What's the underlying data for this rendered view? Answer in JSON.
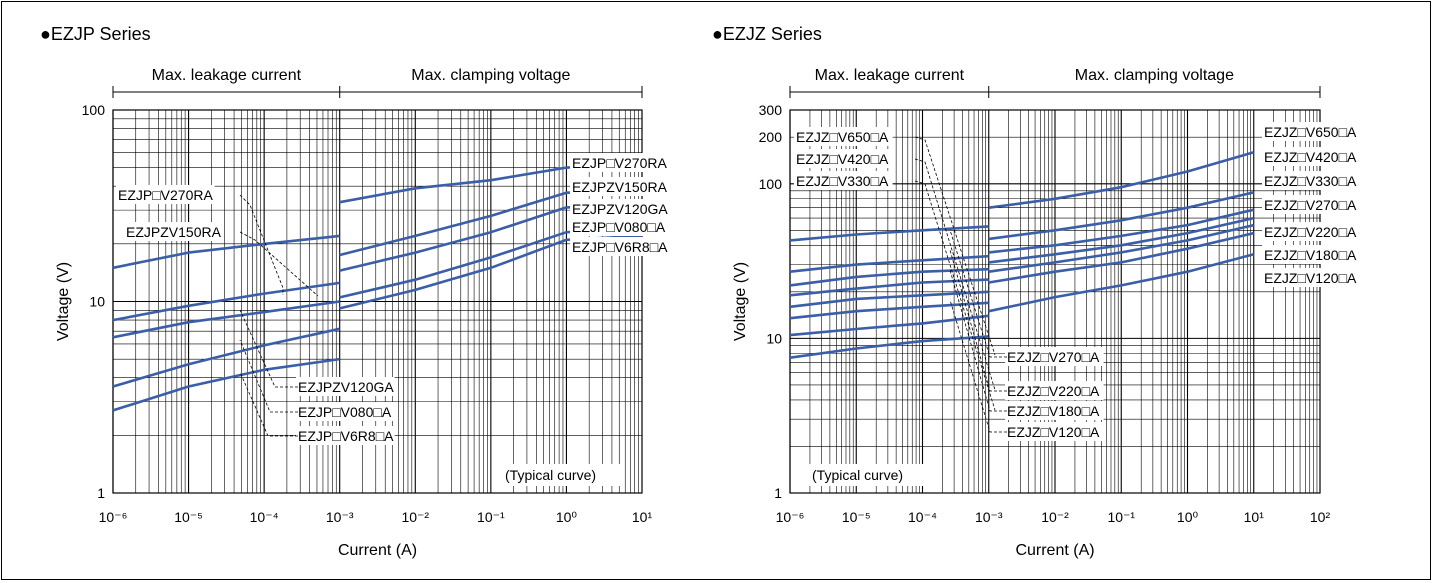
{
  "chart_data": [
    {
      "type": "line",
      "title": "●EZJP Series",
      "xlabel": "Current (A)",
      "ylabel": "Voltage (V)",
      "xscale": "log",
      "yscale": "log",
      "xlim": [
        1e-06,
        10
      ],
      "ylim": [
        1,
        100
      ],
      "xtick_labels": [
        "10⁻⁶",
        "10⁻⁵",
        "10⁻⁴",
        "10⁻³",
        "10⁻²",
        "10⁻¹",
        "10⁰",
        "10¹"
      ],
      "ytick_labels": [
        "1",
        "10",
        "100"
      ],
      "regions": [
        "Max. leakage current",
        "Max. clamping voltage"
      ],
      "note": "(Typical curve)",
      "grid": true,
      "series": [
        {
          "name": "EZJP□V270RA",
          "leakage": {
            "x": [
              1e-06,
              1e-05,
              0.0001,
              0.001
            ],
            "y": [
              15,
              18,
              20,
              22
            ]
          },
          "clamping": {
            "x": [
              0.001,
              0.01,
              0.1,
              1,
              10
            ],
            "y": [
              33,
              39,
              43,
              50,
              52
            ]
          }
        },
        {
          "name": "EZJPZV150RA",
          "leakage": {
            "x": [
              1e-06,
              1e-05,
              0.0001,
              0.001
            ],
            "y": [
              8,
              9.5,
              11,
              12.5
            ]
          },
          "clamping": {
            "x": [
              0.001,
              0.01,
              0.1,
              1,
              10
            ],
            "y": [
              17.5,
              22,
              28,
              37,
              38
            ]
          }
        },
        {
          "name": "EZJPZV120GA",
          "leakage": {
            "x": [
              1e-06,
              1e-05,
              0.0001,
              0.001
            ],
            "y": [
              6.5,
              7.8,
              8.8,
              10
            ]
          },
          "clamping": {
            "x": [
              0.001,
              0.01,
              0.1,
              1,
              10
            ],
            "y": [
              14.5,
              18,
              23,
              31,
              32
            ]
          }
        },
        {
          "name": "EZJP□V080□A",
          "leakage": {
            "x": [
              1e-06,
              1e-05,
              0.0001,
              0.001
            ],
            "y": [
              3.6,
              4.7,
              5.9,
              7.2
            ]
          },
          "clamping": {
            "x": [
              0.001,
              0.01,
              0.1,
              1,
              10
            ],
            "y": [
              10.5,
              13,
              17,
              23,
              24
            ]
          }
        },
        {
          "name": "EZJP□V6R8□A",
          "leakage": {
            "x": [
              1e-06,
              1e-05,
              0.0001,
              0.001
            ],
            "y": [
              2.7,
              3.6,
              4.4,
              5
            ]
          },
          "clamping": {
            "x": [
              0.001,
              0.01,
              0.1,
              1,
              10
            ],
            "y": [
              9.2,
              11.5,
              15,
              21,
              22
            ]
          }
        }
      ]
    },
    {
      "type": "line",
      "title": "●EZJZ Series",
      "xlabel": "Current (A)",
      "ylabel": "Voltage (V)",
      "xscale": "log",
      "yscale": "log",
      "xlim": [
        1e-06,
        100
      ],
      "ylim": [
        1,
        300
      ],
      "xtick_labels": [
        "10⁻⁶",
        "10⁻⁵",
        "10⁻⁴",
        "10⁻³",
        "10⁻²",
        "10⁻¹",
        "10⁰",
        "10¹",
        "10²"
      ],
      "ytick_labels": [
        "1",
        "10",
        "100",
        "200",
        "300"
      ],
      "regions": [
        "Max. leakage current",
        "Max. clamping voltage"
      ],
      "note": "(Typical curve)",
      "grid": true,
      "series": [
        {
          "name": "EZJZ□V650□A",
          "leakage": {
            "x": [
              1e-06,
              1e-05,
              0.0001,
              0.001
            ],
            "y": [
              43,
              47,
              50,
              53
            ]
          },
          "clamping": {
            "x": [
              0.001,
              0.01,
              0.1,
              1,
              10
            ],
            "y": [
              70,
              80,
              95,
              120,
              160
            ]
          }
        },
        {
          "name": "EZJZ□V420□A",
          "leakage": {
            "x": [
              1e-06,
              1e-05,
              0.0001,
              0.001
            ],
            "y": [
              27,
              30,
              32,
              34
            ]
          },
          "clamping": {
            "x": [
              0.001,
              0.01,
              0.1,
              1,
              10
            ],
            "y": [
              44,
              50,
              58,
              70,
              88
            ]
          }
        },
        {
          "name": "EZJZ□V330□A",
          "leakage": {
            "x": [
              1e-06,
              1e-05,
              0.0001,
              0.001
            ],
            "y": [
              22,
              25,
              27,
              28
            ]
          },
          "clamping": {
            "x": [
              0.001,
              0.01,
              0.1,
              1,
              10
            ],
            "y": [
              36,
              40,
              46,
              54,
              68
            ]
          }
        },
        {
          "name": "EZJZ□V270□A",
          "leakage": {
            "x": [
              1e-06,
              1e-05,
              0.0001,
              0.001
            ],
            "y": [
              19,
              21,
              23,
              24
            ]
          },
          "clamping": {
            "x": [
              0.001,
              0.01,
              0.1,
              1,
              10
            ],
            "y": [
              31,
              35,
              40,
              48,
              60
            ]
          }
        },
        {
          "name": "EZJZ□V220□A",
          "leakage": {
            "x": [
              1e-06,
              1e-05,
              0.0001,
              0.001
            ],
            "y": [
              16,
              18,
              19,
              20
            ]
          },
          "clamping": {
            "x": [
              0.001,
              0.01,
              0.1,
              1,
              10
            ],
            "y": [
              27,
              31,
              36,
              43,
              54
            ]
          }
        },
        {
          "name": "EZJZ□V180□A",
          "leakage": {
            "x": [
              1e-06,
              1e-05,
              0.0001,
              0.001
            ],
            "y": [
              13.5,
              15,
              16,
              17
            ]
          },
          "clamping": {
            "x": [
              0.001,
              0.01,
              0.1,
              1,
              10
            ],
            "y": [
              23,
              27,
              31,
              38,
              48
            ]
          }
        },
        {
          "name": "EZJZ□V120□A",
          "leakage": {
            "x": [
              1e-06,
              1e-05,
              0.0001,
              0.001
            ],
            "y": [
              10.5,
              11.5,
              12.5,
              14
            ]
          },
          "clamping": {
            "x": [
              0.001,
              0.01,
              0.1,
              1,
              10
            ],
            "y": [
              15,
              18.5,
              22,
              27,
              35
            ]
          }
        },
        {
          "name": "",
          "leakage": {
            "x": [
              1e-06,
              1e-05,
              0.0001,
              0.001
            ],
            "y": [
              7.5,
              8.6,
              9.6,
              10.3
            ]
          },
          "clamping": {
            "x": [],
            "y": []
          }
        }
      ]
    }
  ]
}
